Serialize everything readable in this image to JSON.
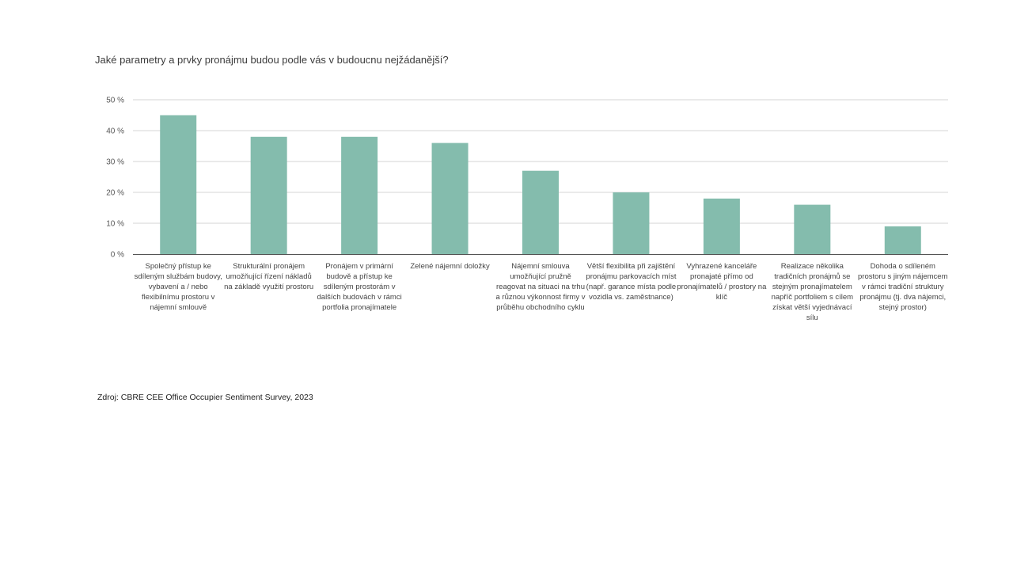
{
  "chart_data": {
    "type": "bar",
    "title": "Jaké parametry  a prvky pronájmu budou podle vás v budoucnu nejžádanější?",
    "xlabel": "",
    "ylabel": "",
    "ylim": [
      0,
      50
    ],
    "ytick_step": 10,
    "ytick_labels": [
      "0 %",
      "10 %",
      "20 %",
      "30 %",
      "40 %",
      "50 %"
    ],
    "grid": true,
    "legend": "none",
    "bar_color": "#84bcad",
    "categories": [
      "Společný přístup ke sdíleným službám budovy, vybavení  a / nebo flexibilnímu prostoru v nájemní smlouvě",
      "Strukturální pronájem umožňující řízení nákladů na základě využití prostoru",
      "Pronájem v primární budově a přístup ke sdíleným prostorám v dalších budovách  v rámci portfolia pronajímatele",
      "Zelené nájemní doložky",
      "Nájemní smlouva umožňující pružně reagovat  na situaci na trhu a různou výkonnost firmy v průběhu obchodního cyklu",
      "Větší flexibilita při zajištění pronájmu parkovacích míst (např. garance místa podle vozidla vs. zaměstnance)",
      "Vyhrazené kanceláře pronajaté přímo od pronajímatelů / prostory na klíč",
      "Realizace několika tradičních pronájmů se stejným pronajímatelem napříč portfoliem s cílem získat větší vyjednávací sílu",
      "Dohoda o sdíleném prostoru s jiným nájemcem v rámci tradiční struktury pronájmu (tj. dva nájemci, stejný prostor)"
    ],
    "values": [
      45,
      38,
      38,
      36,
      27,
      20,
      18,
      16,
      9
    ]
  },
  "source_note": "Zdroj: CBRE CEE Office Occupier Sentiment  Survey, 2023"
}
